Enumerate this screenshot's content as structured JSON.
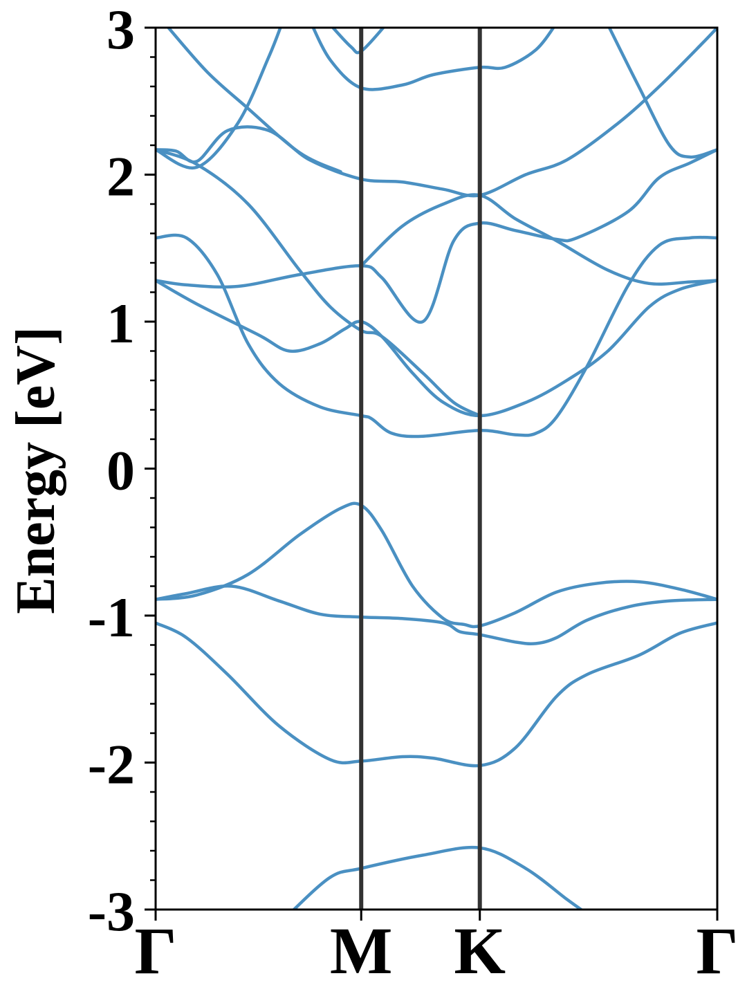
{
  "chart_data": {
    "type": "line",
    "title": "",
    "ylabel": "Energy [eV]",
    "xlabel": "",
    "ylim": [
      -3,
      3
    ],
    "y_ticks": [
      -3,
      -2,
      -1,
      0,
      1,
      2,
      3
    ],
    "y_tick_labels": [
      "-3",
      "-2",
      "-1",
      "0",
      "1",
      "2",
      "3"
    ],
    "xlim": [
      0,
      2.732
    ],
    "high_symmetry_points": [
      {
        "label": "Γ",
        "x": 0
      },
      {
        "label": "M",
        "x": 1.0
      },
      {
        "label": "K",
        "x": 1.577
      },
      {
        "label": "Γ",
        "x": 2.732
      }
    ],
    "grid": false,
    "legend": "none",
    "line_color": "#4a90c2",
    "divider_color": "#333333",
    "series": [
      {
        "values": [
          [
            0,
            -1.05
          ],
          [
            0.15,
            -1.15
          ],
          [
            0.35,
            -1.4
          ],
          [
            0.6,
            -1.75
          ],
          [
            0.85,
            -1.98
          ],
          [
            1.0,
            -1.99
          ],
          [
            1.2,
            -1.96
          ],
          [
            1.35,
            -1.97
          ],
          [
            1.577,
            -2.02
          ],
          [
            1.75,
            -1.9
          ],
          [
            1.95,
            -1.55
          ],
          [
            2.1,
            -1.4
          ],
          [
            2.35,
            -1.27
          ],
          [
            2.55,
            -1.12
          ],
          [
            2.732,
            -1.05
          ]
        ]
      },
      {
        "values": [
          [
            0,
            -0.89
          ],
          [
            0.2,
            -0.86
          ],
          [
            0.45,
            -0.72
          ],
          [
            0.7,
            -0.45
          ],
          [
            0.9,
            -0.27
          ],
          [
            1.0,
            -0.25
          ],
          [
            1.1,
            -0.42
          ],
          [
            1.25,
            -0.8
          ],
          [
            1.4,
            -1.02
          ],
          [
            1.5,
            -1.06
          ],
          [
            1.577,
            -1.07
          ],
          [
            1.75,
            -0.98
          ],
          [
            1.95,
            -0.84
          ],
          [
            2.15,
            -0.78
          ],
          [
            2.35,
            -0.77
          ],
          [
            2.55,
            -0.82
          ],
          [
            2.732,
            -0.89
          ]
        ]
      },
      {
        "values": [
          [
            0,
            -0.89
          ],
          [
            0.15,
            -0.85
          ],
          [
            0.37,
            -0.8
          ],
          [
            0.6,
            -0.9
          ],
          [
            0.8,
            -0.99
          ],
          [
            1.0,
            -1.01
          ],
          [
            1.2,
            -1.02
          ],
          [
            1.4,
            -1.05
          ],
          [
            1.48,
            -1.11
          ],
          [
            1.577,
            -1.13
          ],
          [
            1.75,
            -1.18
          ],
          [
            1.85,
            -1.19
          ],
          [
            1.95,
            -1.15
          ],
          [
            2.1,
            -1.03
          ],
          [
            2.3,
            -0.94
          ],
          [
            2.5,
            -0.9
          ],
          [
            2.732,
            -0.89
          ]
        ]
      },
      {
        "values": [
          [
            0,
            1.28
          ],
          [
            0.15,
            1.25
          ],
          [
            0.4,
            1.24
          ],
          [
            0.7,
            1.32
          ],
          [
            1.0,
            1.38
          ],
          [
            1.1,
            1.3
          ],
          [
            1.3,
            1.0
          ],
          [
            1.45,
            1.55
          ],
          [
            1.577,
            1.67
          ],
          [
            1.75,
            1.62
          ],
          [
            1.95,
            1.56
          ],
          [
            2.05,
            1.57
          ],
          [
            2.3,
            1.75
          ],
          [
            2.45,
            1.98
          ],
          [
            2.6,
            2.08
          ],
          [
            2.732,
            2.17
          ]
        ]
      },
      {
        "values": [
          [
            0,
            1.28
          ],
          [
            0.2,
            1.12
          ],
          [
            0.5,
            0.91
          ],
          [
            0.65,
            0.8
          ],
          [
            0.8,
            0.85
          ],
          [
            0.92,
            0.95
          ],
          [
            1.0,
            1.0
          ],
          [
            1.1,
            0.9
          ],
          [
            1.25,
            0.65
          ],
          [
            1.4,
            0.45
          ],
          [
            1.577,
            0.36
          ],
          [
            1.8,
            0.45
          ],
          [
            2.0,
            0.6
          ],
          [
            2.2,
            0.8
          ],
          [
            2.4,
            1.1
          ],
          [
            2.55,
            1.22
          ],
          [
            2.732,
            1.28
          ]
        ]
      },
      {
        "values": [
          [
            0,
            1.57
          ],
          [
            0.15,
            1.57
          ],
          [
            0.3,
            1.32
          ],
          [
            0.45,
            0.85
          ],
          [
            0.6,
            0.58
          ],
          [
            0.8,
            0.42
          ],
          [
            1.0,
            0.36
          ],
          [
            1.05,
            0.34
          ],
          [
            1.15,
            0.24
          ],
          [
            1.3,
            0.22
          ],
          [
            1.577,
            0.26
          ],
          [
            1.75,
            0.23
          ],
          [
            1.85,
            0.24
          ],
          [
            1.95,
            0.35
          ],
          [
            2.1,
            0.7
          ],
          [
            2.3,
            1.25
          ],
          [
            2.45,
            1.52
          ],
          [
            2.6,
            1.57
          ],
          [
            2.732,
            1.57
          ]
        ]
      },
      {
        "values": [
          [
            0,
            2.17
          ],
          [
            0.2,
            2.07
          ],
          [
            0.45,
            1.8
          ],
          [
            0.7,
            1.35
          ],
          [
            0.85,
            1.1
          ],
          [
            1.0,
            0.94
          ],
          [
            1.1,
            0.9
          ],
          [
            1.3,
            0.65
          ],
          [
            1.45,
            0.45
          ],
          [
            1.577,
            0.36
          ]
        ]
      },
      {
        "values": [
          [
            1.0,
            1.38
          ],
          [
            1.2,
            1.65
          ],
          [
            1.4,
            1.8
          ],
          [
            1.577,
            1.86
          ],
          [
            1.75,
            1.7
          ],
          [
            1.95,
            1.55
          ],
          [
            2.2,
            1.35
          ],
          [
            2.4,
            1.26
          ],
          [
            2.6,
            1.27
          ],
          [
            2.732,
            1.28
          ]
        ]
      },
      {
        "values": [
          [
            0,
            2.17
          ],
          [
            0.2,
            2.05
          ],
          [
            0.4,
            2.35
          ],
          [
            0.55,
            2.8
          ],
          [
            0.62,
            3.05
          ]
        ]
      },
      {
        "values": [
          [
            0,
            2.17
          ],
          [
            0.1,
            2.16
          ],
          [
            0.2,
            2.09
          ],
          [
            0.35,
            2.3
          ],
          [
            0.55,
            2.3
          ],
          [
            0.75,
            2.1
          ],
          [
            1.0,
            1.97
          ],
          [
            1.2,
            1.95
          ],
          [
            1.4,
            1.9
          ],
          [
            1.577,
            1.86
          ],
          [
            1.8,
            2.0
          ],
          [
            2.0,
            2.1
          ],
          [
            2.25,
            2.35
          ],
          [
            2.45,
            2.6
          ],
          [
            2.65,
            2.88
          ],
          [
            2.732,
            3.0
          ]
        ]
      },
      {
        "values": [
          [
            0.05,
            3.02
          ],
          [
            0.25,
            2.7
          ],
          [
            0.45,
            2.45
          ],
          [
            0.7,
            2.15
          ],
          [
            0.9,
            2.02
          ]
        ]
      },
      {
        "values": [
          [
            0.75,
            3.05
          ],
          [
            0.85,
            2.78
          ],
          [
            1.0,
            2.59
          ],
          [
            1.2,
            2.61
          ],
          [
            1.35,
            2.68
          ],
          [
            1.577,
            2.73
          ],
          [
            1.7,
            2.73
          ],
          [
            1.85,
            2.85
          ],
          [
            1.95,
            3.03
          ]
        ]
      },
      {
        "values": [
          [
            0.85,
            3.02
          ],
          [
            0.95,
            2.87
          ],
          [
            1.0,
            2.84
          ],
          [
            1.12,
            3.02
          ]
        ]
      },
      {
        "values": [
          [
            2.2,
            3.02
          ],
          [
            2.35,
            2.6
          ],
          [
            2.5,
            2.2
          ],
          [
            2.6,
            2.12
          ],
          [
            2.732,
            2.17
          ]
        ]
      },
      {
        "values": [
          [
            0.65,
            -3.03
          ],
          [
            0.85,
            -2.78
          ],
          [
            1.0,
            -2.72
          ],
          [
            1.3,
            -2.63
          ],
          [
            1.577,
            -2.58
          ],
          [
            1.8,
            -2.72
          ],
          [
            2.0,
            -2.93
          ],
          [
            2.1,
            -3.03
          ]
        ]
      }
    ]
  }
}
